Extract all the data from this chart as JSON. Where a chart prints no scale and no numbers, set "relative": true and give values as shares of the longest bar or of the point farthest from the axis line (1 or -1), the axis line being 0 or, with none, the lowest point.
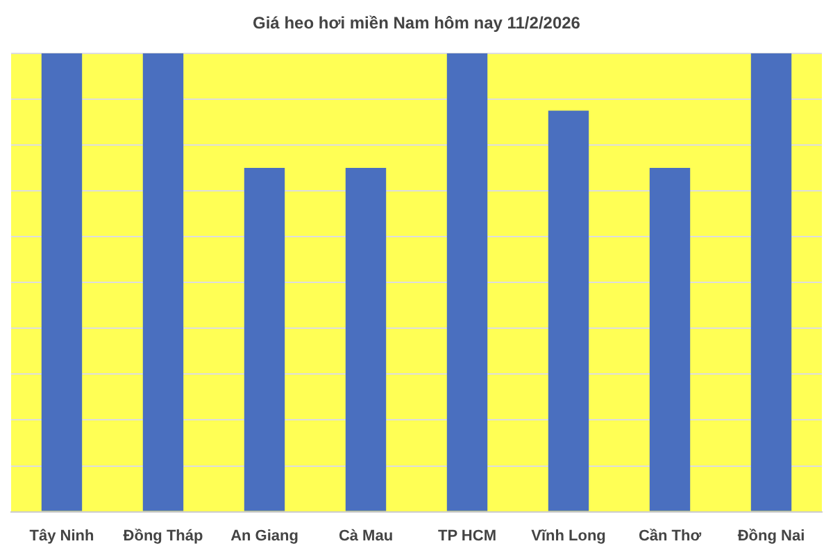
{
  "chart_data": {
    "type": "bar",
    "title": "Giá heo hơi miền Nam hôm nay 11/2/2026",
    "categories": [
      "Tây Ninh",
      "Đồng Tháp",
      "An Giang",
      "Cà Mau",
      "TP HCM",
      "Vĩnh Long",
      "Cần Thơ",
      "Đồng Nai"
    ],
    "values": [
      1,
      1,
      0.75,
      0.75,
      1,
      0.875,
      0.75,
      1
    ],
    "color": "#4a6fbf",
    "relative": true,
    "grid": "y",
    "legend": false
  }
}
